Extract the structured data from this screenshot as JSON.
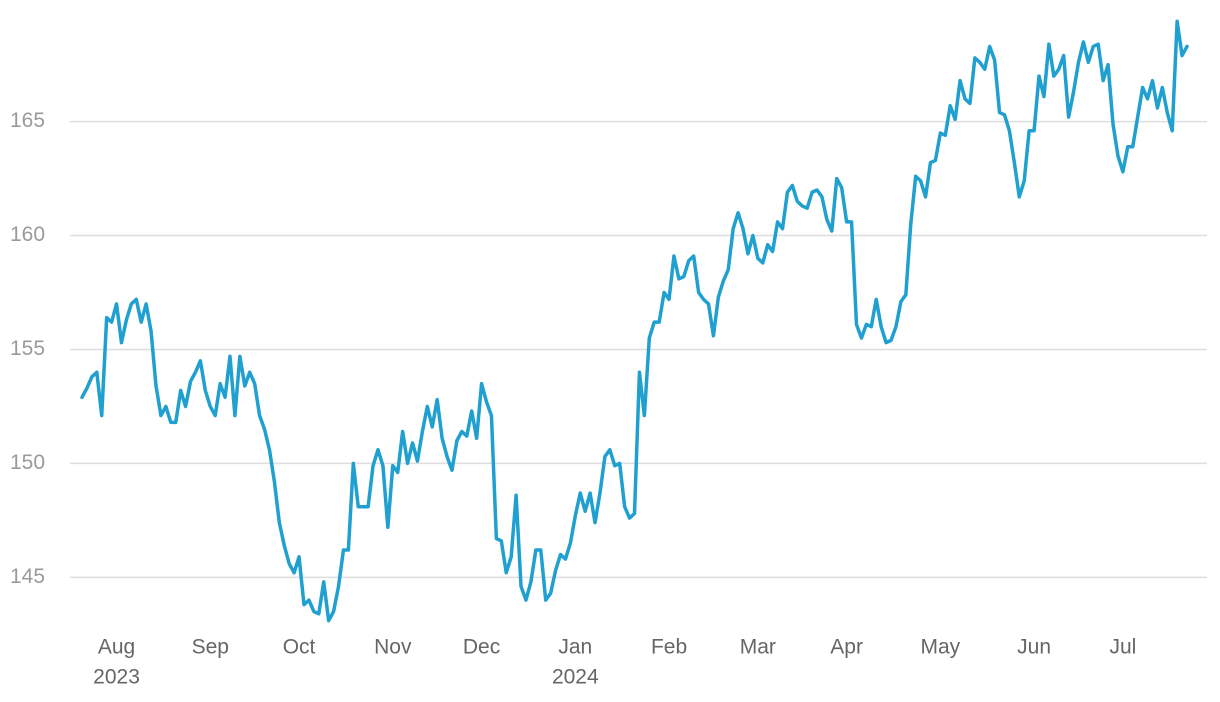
{
  "chart_data": {
    "type": "line",
    "categories": [
      null,
      null,
      null,
      null,
      null,
      null,
      null,
      "Aug",
      null,
      null,
      null,
      null,
      null,
      null,
      null,
      null,
      null,
      null,
      null,
      null,
      null,
      null,
      null,
      null,
      null,
      null,
      "Sep",
      null,
      null,
      null,
      null,
      null,
      null,
      null,
      null,
      null,
      null,
      null,
      null,
      null,
      null,
      null,
      null,
      null,
      "Oct",
      null,
      null,
      null,
      null,
      null,
      null,
      null,
      null,
      null,
      null,
      null,
      null,
      null,
      null,
      null,
      null,
      null,
      null,
      "Nov",
      null,
      null,
      null,
      null,
      null,
      null,
      null,
      null,
      null,
      null,
      null,
      null,
      null,
      null,
      null,
      null,
      null,
      "Dec",
      null,
      null,
      null,
      null,
      null,
      null,
      null,
      null,
      null,
      null,
      null,
      null,
      null,
      null,
      null,
      null,
      null,
      null,
      "Jan",
      null,
      null,
      null,
      null,
      null,
      null,
      null,
      null,
      null,
      null,
      null,
      null,
      null,
      null,
      null,
      null,
      null,
      null,
      "Feb",
      null,
      null,
      null,
      null,
      null,
      null,
      null,
      null,
      null,
      null,
      null,
      null,
      null,
      null,
      null,
      null,
      null,
      "Mar",
      null,
      null,
      null,
      null,
      null,
      null,
      null,
      null,
      null,
      null,
      null,
      null,
      null,
      null,
      null,
      null,
      null,
      "Apr",
      null,
      null,
      null,
      null,
      null,
      null,
      null,
      null,
      null,
      null,
      null,
      null,
      null,
      null,
      null,
      null,
      null,
      null,
      "May",
      null,
      null,
      null,
      null,
      null,
      null,
      null,
      null,
      null,
      null,
      null,
      null,
      null,
      null,
      null,
      null,
      null,
      null,
      "Jun",
      null,
      null,
      null,
      null,
      null,
      null,
      null,
      null,
      null,
      null,
      null,
      null,
      null,
      null,
      null,
      null,
      null,
      "Jul",
      null,
      null,
      null,
      null,
      null,
      null,
      null,
      null,
      null,
      null,
      null,
      null,
      null
    ],
    "category_years": [
      null,
      null,
      null,
      null,
      null,
      null,
      null,
      "2023",
      null,
      null,
      null,
      null,
      null,
      null,
      null,
      null,
      null,
      null,
      null,
      null,
      null,
      null,
      null,
      null,
      null,
      null,
      null,
      null,
      null,
      null,
      null,
      null,
      null,
      null,
      null,
      null,
      null,
      null,
      null,
      null,
      null,
      null,
      null,
      null,
      null,
      null,
      null,
      null,
      null,
      null,
      null,
      null,
      null,
      null,
      null,
      null,
      null,
      null,
      null,
      null,
      null,
      null,
      null,
      null,
      null,
      null,
      null,
      null,
      null,
      null,
      null,
      null,
      null,
      null,
      null,
      null,
      null,
      null,
      null,
      null,
      null,
      null,
      null,
      null,
      null,
      null,
      null,
      null,
      null,
      null,
      null,
      null,
      null,
      null,
      null,
      null,
      null,
      null,
      null,
      null,
      "2024",
      null,
      null,
      null,
      null,
      null,
      null,
      null,
      null,
      null,
      null,
      null,
      null,
      null,
      null,
      null,
      null,
      null,
      null,
      null,
      null,
      null,
      null,
      null,
      null,
      null,
      null,
      null,
      null,
      null,
      null,
      null,
      null,
      null,
      null,
      null,
      null,
      null,
      null,
      null,
      null,
      null,
      null,
      null,
      null,
      null,
      null,
      null,
      null,
      null,
      null,
      null,
      null,
      null,
      null,
      null,
      null,
      null,
      null,
      null,
      null,
      null,
      null,
      null,
      null,
      null,
      null,
      null,
      null,
      null,
      null,
      null,
      null,
      null,
      null,
      null,
      null,
      null,
      null,
      null,
      null,
      null,
      null,
      null,
      null,
      null,
      null,
      null,
      null,
      null,
      null,
      null,
      null,
      null,
      null,
      null,
      null,
      null,
      null,
      null,
      null,
      null,
      null,
      null,
      null,
      null,
      null,
      null,
      null,
      null,
      null,
      null,
      null,
      null,
      null,
      null,
      null,
      null,
      null,
      null,
      null,
      null,
      null,
      null
    ],
    "values": [
      152.9,
      153.3,
      153.8,
      154.0,
      152.1,
      156.4,
      156.2,
      157.0,
      155.3,
      156.3,
      157.0,
      157.2,
      156.2,
      157.0,
      155.8,
      153.4,
      152.1,
      152.5,
      151.8,
      151.8,
      153.2,
      152.5,
      153.6,
      154.0,
      154.5,
      153.2,
      152.5,
      152.1,
      153.5,
      152.9,
      154.7,
      152.1,
      154.7,
      153.4,
      154.0,
      153.5,
      152.1,
      151.5,
      150.6,
      149.2,
      147.4,
      146.4,
      145.6,
      145.2,
      145.9,
      143.8,
      144.0,
      143.5,
      143.4,
      144.8,
      143.1,
      143.5,
      144.6,
      146.2,
      146.2,
      150.0,
      148.1,
      148.1,
      148.1,
      149.9,
      150.6,
      149.9,
      147.2,
      149.9,
      149.6,
      151.4,
      150.0,
      150.9,
      150.1,
      151.4,
      152.5,
      151.6,
      152.8,
      151.1,
      150.3,
      149.7,
      151.0,
      151.4,
      151.2,
      152.3,
      151.1,
      153.5,
      152.7,
      152.1,
      146.7,
      146.6,
      145.2,
      145.9,
      148.6,
      144.6,
      144.0,
      144.8,
      146.2,
      146.2,
      144.0,
      144.3,
      145.3,
      146.0,
      145.8,
      146.5,
      147.7,
      148.7,
      147.9,
      148.7,
      147.4,
      148.7,
      150.3,
      150.6,
      149.9,
      150.0,
      148.1,
      147.6,
      147.8,
      154.0,
      152.1,
      155.5,
      156.2,
      156.2,
      157.5,
      157.2,
      159.1,
      158.1,
      158.2,
      158.9,
      159.1,
      157.5,
      157.2,
      157.0,
      155.6,
      157.3,
      158.0,
      158.5,
      160.3,
      161.0,
      160.3,
      159.2,
      160.0,
      159.0,
      158.8,
      159.6,
      159.3,
      160.6,
      160.3,
      161.9,
      162.2,
      161.5,
      161.3,
      161.2,
      161.9,
      162.0,
      161.7,
      160.7,
      160.2,
      162.5,
      162.1,
      160.6,
      160.6,
      156.1,
      155.5,
      156.1,
      156.0,
      157.2,
      156.0,
      155.3,
      155.4,
      156.0,
      157.1,
      157.4,
      160.5,
      162.6,
      162.4,
      161.7,
      163.2,
      163.3,
      164.5,
      164.4,
      165.7,
      165.1,
      166.8,
      166.0,
      165.8,
      167.8,
      167.6,
      167.3,
      168.3,
      167.7,
      165.4,
      165.3,
      164.6,
      163.2,
      161.7,
      162.4,
      164.6,
      164.6,
      167.0,
      166.1,
      168.4,
      167.0,
      167.3,
      167.9,
      165.2,
      166.3,
      167.6,
      168.5,
      167.6,
      168.3,
      168.4,
      166.8,
      167.5,
      164.9,
      163.5,
      162.8,
      163.9,
      163.9,
      165.2,
      166.5,
      166.0,
      166.8,
      165.6,
      166.5,
      165.4,
      164.6,
      169.4,
      167.9,
      168.3
    ],
    "color": "#1fa0d0",
    "ylim": [
      142.6,
      169.9
    ],
    "yticks": [
      145,
      150,
      155,
      160,
      165
    ],
    "grid": true
  }
}
